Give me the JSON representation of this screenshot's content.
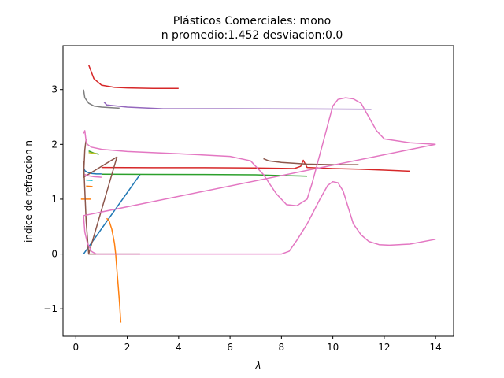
{
  "chart_data": {
    "type": "line",
    "title": "Plásticos Comerciales: mono",
    "subtitle": "n promedio:1.452 desviacion:0.0",
    "xlabel": "λ",
    "ylabel": "indice de refraccion n",
    "xlim": [
      -0.5,
      14.7
    ],
    "ylim": [
      -1.5,
      3.8
    ],
    "xticks": [
      0,
      2,
      4,
      6,
      8,
      10,
      12,
      14
    ],
    "yticks": [
      -1,
      0,
      1,
      2,
      3
    ],
    "xtick_labels": [
      "0",
      "2",
      "4",
      "6",
      "8",
      "10",
      "12",
      "14"
    ],
    "ytick_labels": [
      "−1",
      "0",
      "1",
      "2",
      "3"
    ],
    "grid": false,
    "series": [
      {
        "color": "#1f77b4",
        "x": [
          0.3,
          2.5
        ],
        "y": [
          0.0,
          1.45
        ]
      },
      {
        "color": "#1f77b4",
        "x": [
          0.3,
          0.35,
          0.45,
          0.6,
          0.8,
          1.0
        ],
        "y": [
          1.58,
          1.52,
          1.49,
          1.47,
          1.46,
          1.46
        ]
      },
      {
        "color": "#ff7f0e",
        "x": [
          1.2,
          1.3,
          1.4,
          1.5,
          1.55,
          1.6,
          1.65,
          1.7,
          1.75
        ],
        "y": [
          0.65,
          0.6,
          0.45,
          0.2,
          0.0,
          -0.3,
          -0.6,
          -0.9,
          -1.25
        ]
      },
      {
        "color": "#ff7f0e",
        "x": [
          0.2,
          0.6
        ],
        "y": [
          1.0,
          1.0
        ]
      },
      {
        "color": "#ff7f0e",
        "x": [
          0.4,
          0.65
        ],
        "y": [
          1.24,
          1.23
        ]
      },
      {
        "color": "#2ca02c",
        "x": [
          1.0,
          3.0,
          5.0,
          7.0,
          8.0,
          9.0
        ],
        "y": [
          1.455,
          1.452,
          1.45,
          1.445,
          1.43,
          1.42
        ]
      },
      {
        "color": "#2ca02c",
        "x": [
          0.5,
          0.7,
          0.9
        ],
        "y": [
          1.88,
          1.84,
          1.82
        ]
      },
      {
        "color": "#d62728",
        "x": [
          0.5,
          0.7,
          1.0,
          1.5,
          2.0,
          3.0,
          4.0
        ],
        "y": [
          3.45,
          3.2,
          3.08,
          3.04,
          3.03,
          3.02,
          3.02
        ]
      },
      {
        "color": "#d62728",
        "x": [
          1.0,
          3.0,
          5.0,
          7.0,
          8.5,
          8.75,
          8.85,
          9.0,
          10.0,
          11.0,
          12.0,
          13.0
        ],
        "y": [
          1.58,
          1.575,
          1.575,
          1.57,
          1.56,
          1.6,
          1.71,
          1.58,
          1.56,
          1.55,
          1.53,
          1.51
        ]
      },
      {
        "color": "#9467bd",
        "x": [
          1.1,
          1.2,
          2.0,
          3.4,
          6.0,
          9.0,
          11.5
        ],
        "y": [
          2.77,
          2.72,
          2.68,
          2.65,
          2.65,
          2.645,
          2.64
        ]
      },
      {
        "color": "#8c564b",
        "x": [
          0.3,
          0.4,
          0.5,
          1.6,
          0.3,
          0.35,
          0.4
        ],
        "y": [
          1.7,
          0.6,
          0.0,
          1.77,
          1.4,
          1.9,
          2.1
        ]
      },
      {
        "color": "#8c564b",
        "x": [
          0.5,
          2.5
        ],
        "y": [
          0.0,
          0.0
        ]
      },
      {
        "color": "#8c564b",
        "x": [
          7.3,
          7.5,
          8.0,
          9.0,
          10.0,
          11.0
        ],
        "y": [
          1.74,
          1.7,
          1.67,
          1.64,
          1.63,
          1.63
        ]
      },
      {
        "color": "#e377c2",
        "x": [
          0.3,
          0.35,
          0.4,
          0.45,
          0.6,
          1.0,
          2.0,
          4.0,
          6.0,
          6.8,
          7.3,
          7.8,
          8.2,
          8.6,
          9.0,
          9.2,
          9.6,
          10.0,
          10.2,
          10.5,
          10.8,
          11.1,
          11.4,
          11.7,
          12.0,
          13.0,
          14.0
        ],
        "y": [
          2.2,
          2.25,
          2.05,
          2.0,
          1.95,
          1.91,
          1.87,
          1.83,
          1.78,
          1.7,
          1.45,
          1.1,
          0.9,
          0.88,
          1.0,
          1.3,
          2.0,
          2.7,
          2.82,
          2.85,
          2.83,
          2.75,
          2.5,
          2.25,
          2.1,
          2.03,
          2.0
        ]
      },
      {
        "color": "#e377c2",
        "x": [
          0.3,
          14.0
        ],
        "y": [
          0.7,
          2.0
        ]
      },
      {
        "color": "#e377c2",
        "x": [
          0.3,
          0.35,
          0.45,
          0.6,
          0.8,
          1.0,
          3.0,
          5.0,
          7.0,
          8.0,
          8.3,
          8.6,
          9.0,
          9.5,
          9.8,
          10.0,
          10.2,
          10.4,
          10.6,
          10.8,
          11.1,
          11.4,
          11.8,
          12.2,
          13.0,
          14.0
        ],
        "y": [
          0.7,
          0.4,
          0.2,
          0.05,
          0.0,
          0.0,
          0.0,
          0.0,
          0.0,
          0.0,
          0.05,
          0.25,
          0.55,
          1.0,
          1.25,
          1.32,
          1.3,
          1.15,
          0.85,
          0.55,
          0.35,
          0.23,
          0.17,
          0.16,
          0.18,
          0.27
        ]
      },
      {
        "color": "#7f7f7f",
        "x": [
          0.3,
          0.35,
          0.5,
          0.7,
          1.0,
          1.7
        ],
        "y": [
          3.0,
          2.85,
          2.75,
          2.7,
          2.68,
          2.66
        ]
      },
      {
        "color": "#bcbd22",
        "x": [
          0.5,
          0.8
        ],
        "y": [
          1.85,
          1.83
        ]
      },
      {
        "color": "#17becf",
        "x": [
          0.4,
          0.65
        ],
        "y": [
          1.35,
          1.34
        ]
      },
      {
        "color": "#e377c2",
        "x": [
          0.35,
          0.45,
          0.7,
          1.0
        ],
        "y": [
          1.45,
          1.43,
          1.41,
          1.4
        ]
      }
    ]
  }
}
